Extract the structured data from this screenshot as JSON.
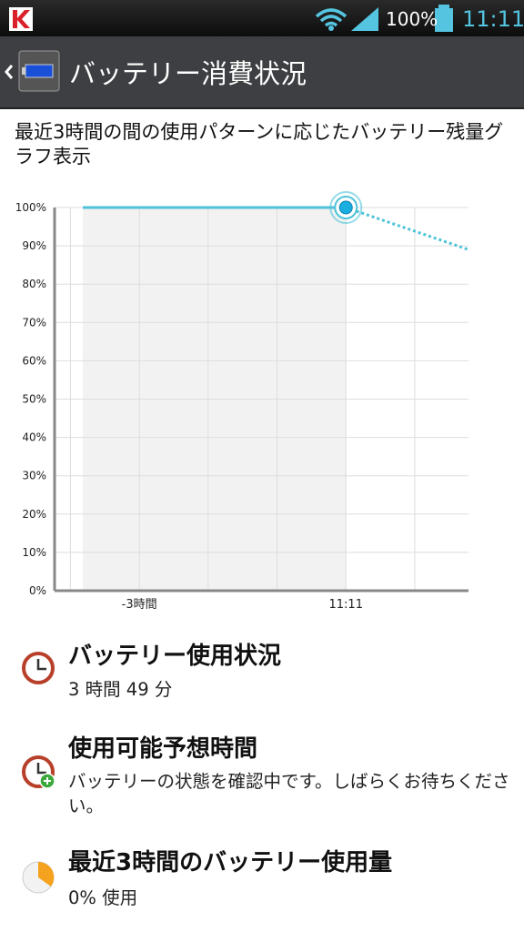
{
  "status_bar": {
    "battery": "100%",
    "time": "11:11"
  },
  "app_bar": {
    "title": "バッテリー消費状況"
  },
  "description": "最近3時間の間の使用パターンに応じたバッテリー残量グラフ表示",
  "chart_data": {
    "type": "line",
    "series": [
      {
        "color": "#4ec3d8",
        "style": "solid",
        "x": [
          -3.82,
          0
        ],
        "values": [
          100,
          100
        ]
      },
      {
        "color": "#4ec3d8",
        "style": "dotted",
        "x": [
          0,
          1.78
        ],
        "values": [
          100,
          89
        ]
      }
    ],
    "xlim": [
      -4.23,
      1.78
    ],
    "xticks": [
      {
        "value": -3,
        "label": "-3時間"
      },
      {
        "value": 0,
        "label": "11:11"
      }
    ],
    "xgrid": [
      -4,
      -2,
      -1,
      1
    ],
    "ylim": [
      0,
      100
    ],
    "yticks": [
      {
        "value": 0,
        "label": "0%"
      },
      {
        "value": 10,
        "label": "10%"
      },
      {
        "value": 20,
        "label": "20%"
      },
      {
        "value": 30,
        "label": "30%"
      },
      {
        "value": 40,
        "label": "40%"
      },
      {
        "value": 50,
        "label": "50%"
      },
      {
        "value": 60,
        "label": "60%"
      },
      {
        "value": 70,
        "label": "70%"
      },
      {
        "value": 80,
        "label": "80%"
      },
      {
        "value": 90,
        "label": "90%"
      },
      {
        "value": 100,
        "label": "100%"
      }
    ],
    "grid": true
  },
  "items": [
    {
      "title": "バッテリー使用状況",
      "subtitle": "3 時間 49 分"
    },
    {
      "title": "使用可能予想時間",
      "subtitle": "バッテリーの状態を確認中です。しばらくお待ちください。"
    },
    {
      "title": "最近3時間のバッテリー使用量",
      "subtitle": "0% 使用"
    }
  ]
}
